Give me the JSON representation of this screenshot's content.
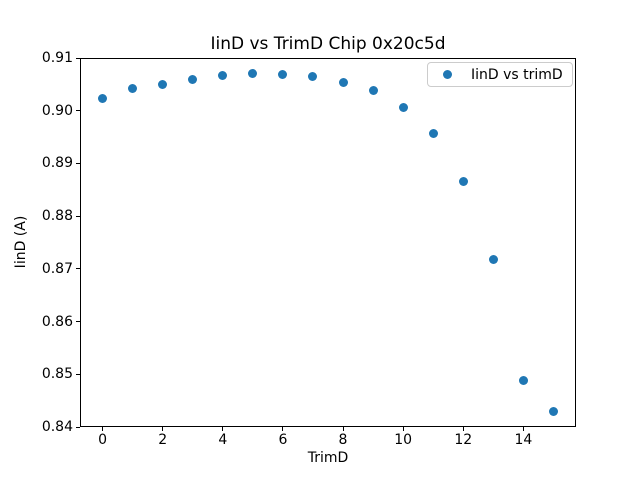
{
  "chart_data": {
    "type": "scatter",
    "title": "IinD vs TrimD Chip 0x20c5d",
    "xlabel": "TrimD",
    "ylabel": "IinD (A)",
    "legend": {
      "label": "IinD vs trimD",
      "position": "upper right",
      "marker": "dot"
    },
    "marker_color": "#1f77b4",
    "legend_edge_color": "#cccccc",
    "grid": false,
    "xlim": [
      -0.75,
      15.75
    ],
    "ylim": [
      0.84,
      0.91
    ],
    "x": [
      0,
      1,
      2,
      3,
      4,
      5,
      6,
      7,
      8,
      9,
      10,
      11,
      12,
      13,
      14,
      15
    ],
    "y": [
      0.9024,
      0.9042,
      0.905,
      0.9059,
      0.9067,
      0.907,
      0.9068,
      0.9065,
      0.9053,
      0.9038,
      0.9007,
      0.8956,
      0.8866,
      0.8718,
      0.8489,
      0.843
    ],
    "xticks": {
      "values": [
        0,
        2,
        4,
        6,
        8,
        10,
        12,
        14
      ],
      "labels": [
        "0",
        "2",
        "4",
        "6",
        "8",
        "10",
        "12",
        "14"
      ]
    },
    "yticks": {
      "values": [
        0.84,
        0.85,
        0.86,
        0.87,
        0.88,
        0.89,
        0.9,
        0.91
      ],
      "labels": [
        "0.84",
        "0.85",
        "0.86",
        "0.87",
        "0.88",
        "0.89",
        "0.90",
        "0.91"
      ]
    }
  }
}
